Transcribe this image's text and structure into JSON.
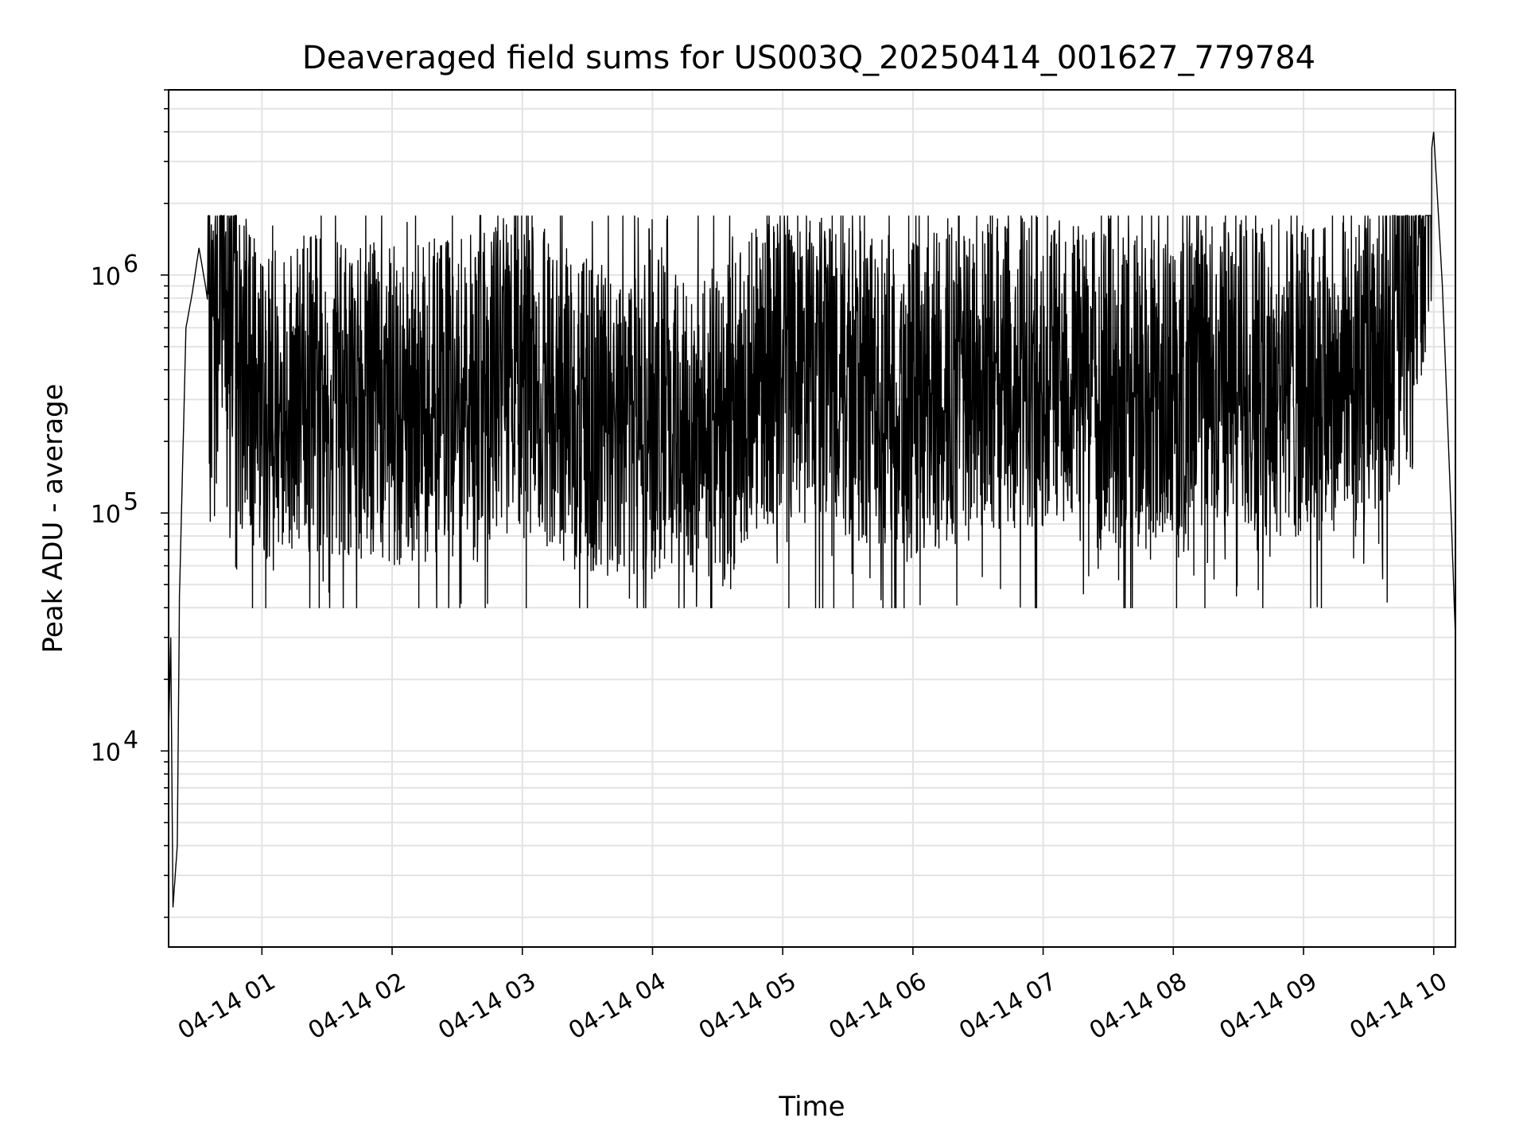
{
  "chart_data": {
    "type": "line",
    "title": "Deaveraged field sums for US003Q_20250414_001627_779784",
    "xlabel": "Time",
    "ylabel": "Peak ADU - average",
    "yscale": "log",
    "ylim": [
      1500,
      6000000
    ],
    "xlim": [
      "2025-04-14 00:17",
      "2025-04-14 10:10"
    ],
    "xticks": [
      "04-14 01",
      "04-14 02",
      "04-14 03",
      "04-14 04",
      "04-14 05",
      "04-14 06",
      "04-14 07",
      "04-14 08",
      "04-14 09",
      "04-14 10"
    ],
    "yticks": [
      {
        "mantissa": "10",
        "exponent": "4",
        "value": 10000
      },
      {
        "mantissa": "10",
        "exponent": "5",
        "value": 100000
      },
      {
        "mantissa": "10",
        "exponent": "6",
        "value": 1000000
      }
    ],
    "grid": true,
    "line_color": "#000000",
    "series": [
      {
        "x": [
          "2025-04-14 00:17",
          "2025-04-14 00:18",
          "2025-04-14 00:19",
          "2025-04-14 00:21",
          "2025-04-14 00:22",
          "2025-04-14 00:25",
          "2025-04-14 00:28",
          "2025-04-14 00:31",
          "2025-04-14 00:34",
          "2025-04-14 00:38",
          "2025-04-14 00:42",
          "2025-04-14 00:46",
          "2025-04-14 00:50",
          "2025-04-14 01:00",
          "2025-04-14 01:30",
          "2025-04-14 02:00",
          "2025-04-14 02:30",
          "2025-04-14 03:00",
          "2025-04-14 03:30",
          "2025-04-14 04:00",
          "2025-04-14 04:30",
          "2025-04-14 05:00",
          "2025-04-14 05:30",
          "2025-04-14 06:00",
          "2025-04-14 06:30",
          "2025-04-14 07:00",
          "2025-04-14 07:30",
          "2025-04-14 08:00",
          "2025-04-14 08:30",
          "2025-04-14 09:00",
          "2025-04-14 09:30",
          "2025-04-14 09:50",
          "2025-04-14 10:00",
          "2025-04-14 10:04",
          "2025-04-14 10:08",
          "2025-04-14 10:10"
        ],
        "values": [
          12000,
          30000,
          2200,
          4000,
          45000,
          600000,
          850000,
          1300000,
          900000,
          500000,
          1200000,
          900000,
          400000,
          300000,
          320000,
          280000,
          300000,
          400000,
          250000,
          250000,
          230000,
          450000,
          350000,
          300000,
          350000,
          420000,
          320000,
          300000,
          400000,
          350000,
          380000,
          700000,
          4000000,
          900000,
          100000,
          30000
        ]
      }
    ]
  }
}
